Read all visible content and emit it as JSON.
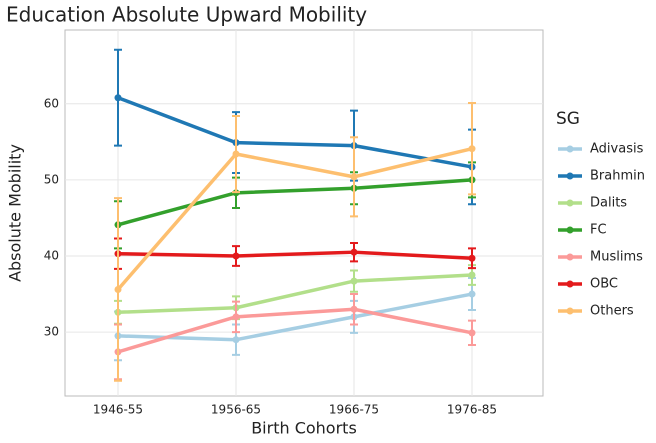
{
  "chart_data": {
    "type": "line",
    "title": "Education Absolute Upward Mobility",
    "x_label": "Birth Cohorts",
    "y_label": "Absolute Mobility",
    "legend_title": "SG",
    "legend": "right",
    "grid": true,
    "categories": [
      "1946-55",
      "1956-65",
      "1966-75",
      "1976-85"
    ],
    "ylim": [
      21.6,
      69.7
    ],
    "yticks": [
      30,
      40,
      50,
      60
    ],
    "series": [
      {
        "name": "Adivasis",
        "color": "#a6cee3",
        "values": [
          29.5,
          29.0,
          32.0,
          35.0
        ],
        "errors": [
          3.2,
          2.0,
          2.1,
          2.1
        ]
      },
      {
        "name": "Brahmin",
        "color": "#1f78b4",
        "values": [
          60.8,
          54.9,
          54.5,
          51.7
        ],
        "errors": [
          6.3,
          4.0,
          4.6,
          4.9
        ]
      },
      {
        "name": "Dalits",
        "color": "#b2df8a",
        "values": [
          32.6,
          33.2,
          36.7,
          37.5
        ],
        "errors": [
          1.5,
          1.5,
          1.4,
          1.3
        ]
      },
      {
        "name": "FC",
        "color": "#33a02c",
        "values": [
          44.1,
          48.3,
          48.9,
          50.0
        ],
        "errors": [
          3.1,
          2.0,
          2.1,
          2.3
        ]
      },
      {
        "name": "Muslims",
        "color": "#fb9a99",
        "values": [
          27.4,
          32.0,
          33.0,
          29.9
        ],
        "errors": [
          3.6,
          2.0,
          2.0,
          1.6
        ]
      },
      {
        "name": "OBC",
        "color": "#e31a1c",
        "values": [
          40.3,
          40.0,
          40.5,
          39.7
        ],
        "errors": [
          2.0,
          1.3,
          1.2,
          1.3
        ]
      },
      {
        "name": "Others",
        "color": "#fdbf6f",
        "values": [
          35.6,
          53.4,
          50.4,
          54.1
        ],
        "errors": [
          12.0,
          5.0,
          5.2,
          6.0
        ]
      }
    ]
  }
}
